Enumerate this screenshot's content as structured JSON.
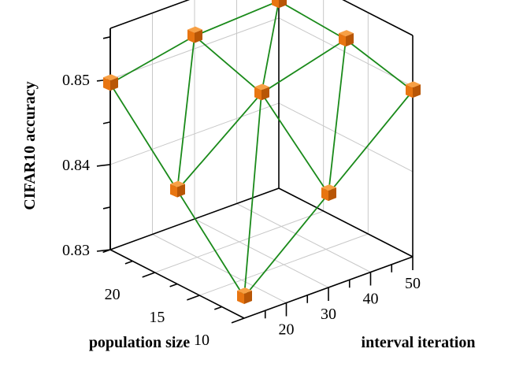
{
  "chart_data": {
    "type": "scatter",
    "subtype": "3d-surface-wireframe",
    "title": "",
    "xlabel": "interval iteration",
    "ylabel": "population size",
    "zlabel": "CIFAR10 accuracy",
    "x_ticks": [
      "20",
      "30",
      "40",
      "50"
    ],
    "y_ticks": [
      "10",
      "15",
      "20"
    ],
    "z_ticks": [
      "0.83",
      "0.84",
      "0.85"
    ],
    "xlim": [
      10,
      50
    ],
    "ylim": [
      10,
      25
    ],
    "zlim": [
      0.83,
      0.856
    ],
    "grid": true,
    "marker": "cube",
    "marker_color": "#e87511",
    "line_color": "#1a8a1a",
    "x_values": [
      10,
      30,
      50
    ],
    "y_values": [
      10,
      17.5,
      25
    ],
    "points": [
      {
        "x": 10,
        "y": 10,
        "z": 0.8325
      },
      {
        "x": 30,
        "y": 10,
        "z": 0.841
      },
      {
        "x": 50,
        "y": 10,
        "z": 0.8495
      },
      {
        "x": 10,
        "y": 17.5,
        "z": 0.841
      },
      {
        "x": 30,
        "y": 17.5,
        "z": 0.8488
      },
      {
        "x": 50,
        "y": 17.5,
        "z": 0.8515
      },
      {
        "x": 10,
        "y": 25,
        "z": 0.8495
      },
      {
        "x": 30,
        "y": 25,
        "z": 0.8515
      },
      {
        "x": 50,
        "y": 25,
        "z": 0.852
      }
    ],
    "triangles": [
      [
        0,
        1,
        4
      ],
      [
        0,
        4,
        3
      ],
      [
        1,
        2,
        5
      ],
      [
        1,
        5,
        4
      ],
      [
        3,
        4,
        7
      ],
      [
        3,
        7,
        6
      ],
      [
        4,
        5,
        8
      ],
      [
        4,
        8,
        7
      ]
    ]
  }
}
